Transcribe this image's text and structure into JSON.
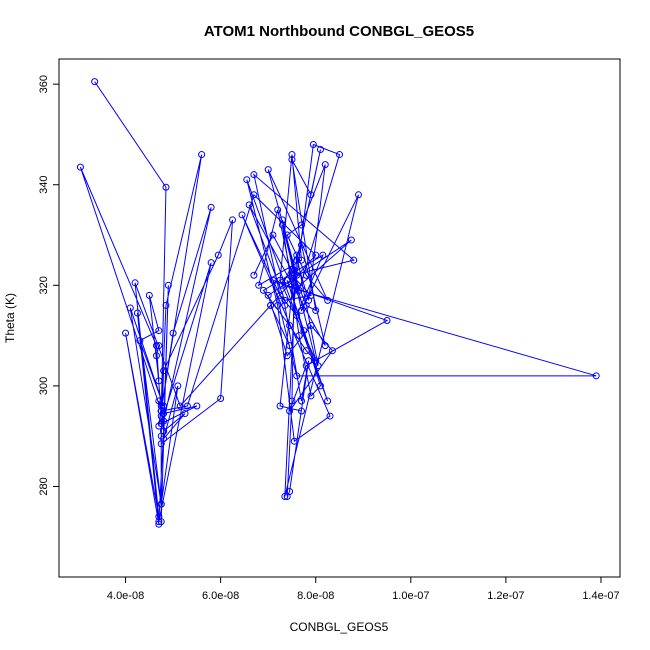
{
  "chart_data": {
    "type": "scatter",
    "title": "ATOM1 Northbound CONBGL_GEOS5",
    "xlabel": "CONBGL_GEOS5",
    "ylabel": "Theta (K)",
    "xlim": [
      2.6e-08,
      1.44e-07
    ],
    "ylim": [
      262,
      365
    ],
    "x_ticks": [
      4e-08,
      6e-08,
      8e-08,
      1e-07,
      1.2e-07,
      1.4e-07
    ],
    "x_tick_labels": [
      "4.0e-08",
      "6.0e-08",
      "8.0e-08",
      "1.0e-07",
      "1.2e-07",
      "1.4e-07"
    ],
    "y_ticks": [
      280,
      300,
      320,
      340,
      360
    ],
    "y_tick_labels": [
      "280",
      "300",
      "320",
      "340",
      "360"
    ],
    "line_color": "#0000ff",
    "marker": "open-circle",
    "grid": false,
    "legend": "none",
    "series": [
      {
        "x": [
          3.35e-08,
          4.85e-08,
          4.75e-08,
          4.85e-08,
          5.6e-08,
          4.75e-08,
          4.8e-08,
          5.8e-08,
          5e-08,
          4.7e-08,
          4.75e-08,
          4.7e-08,
          4.8e-08,
          5.5e-08,
          4.75e-08,
          5.8e-08,
          4.7e-08,
          4.8e-08,
          4.9e-08,
          4.75e-08,
          4.75e-08,
          4.8e-08,
          5.95e-08,
          6.25e-08,
          6e-08,
          4.75e-08,
          4.75e-08,
          5.1e-08,
          4.8e-08,
          5.25e-08,
          4.8e-08,
          4.75e-08,
          5.3e-08,
          6.7e-08,
          8e-08,
          7.05e-08,
          7.45e-08,
          7.05e-08,
          5.15e-08,
          4.2e-08,
          4.7e-08,
          4e-08,
          4.7e-08,
          4.25e-08,
          4.75e-08,
          4.1e-08,
          4.8e-08,
          4.3e-08,
          4.7e-08,
          4.5e-08,
          4.7e-08,
          4.65e-08,
          3.05e-08,
          4.75e-08,
          4.65e-08,
          4.7e-08
        ],
        "y": [
          360.5,
          339.5,
          294,
          316,
          346,
          295,
          293,
          335.5,
          310.5,
          292,
          296,
          297,
          294.5,
          296,
          292.5,
          324.5,
          273,
          291,
          320,
          273,
          290,
          303,
          326,
          333,
          297.5,
          288.5,
          276.5,
          300,
          289.5,
          294.5,
          291,
          295,
          296,
          338,
          326,
          316,
          308,
          316,
          296,
          320.5,
          274,
          310.5,
          272.5,
          314.5,
          276.5,
          315.5,
          296,
          309,
          311,
          318,
          301,
          308,
          343.5,
          295,
          306,
          308
        ]
      },
      {
        "x": [
          6.7e-08,
          7.1e-08,
          7.55e-08,
          7.8e-08,
          8e-08,
          7.5e-08,
          7.9e-08,
          8.1e-08,
          7.6e-08,
          7.85e-08,
          8.2e-08,
          7.7e-08,
          7.4e-08,
          7.8e-08,
          8.25e-08,
          7e-08,
          7.6e-08,
          7.95e-08,
          8.5e-08,
          7.65e-08,
          7.3e-08,
          7.7e-08,
          8.9e-08,
          7.35e-08,
          7.6e-08,
          8.05e-08,
          7.25e-08,
          7.5e-08,
          7.7e-08,
          6.8e-08,
          7.2e-08,
          7.55e-08,
          8.75e-08,
          7e-08,
          7.4e-08,
          7.9e-08,
          8.35e-08,
          7.45e-08,
          7.8e-08,
          9.5e-08,
          7.1e-08,
          7.6e-08,
          1.39e-07,
          7.3e-08,
          7.7e-08,
          8.2e-08,
          6.6e-08,
          7.35e-08,
          7.9e-08,
          7.5e-08,
          8.8e-08,
          6.7e-08,
          7.25e-08,
          7.6e-08,
          8.15e-08,
          6.9e-08,
          7.45e-08,
          7.8e-08,
          8e-08,
          7.3e-08,
          7.65e-08,
          7.9e-08,
          8.1e-08,
          7.4e-08,
          7.75e-08,
          8.25e-08,
          6.55e-08,
          7.2e-08,
          7.55e-08,
          8.3e-08,
          6.45e-08,
          7.35e-08,
          7.7e-08,
          7.85e-08,
          7.45e-08,
          7.4e-08,
          7.5e-08,
          7.55e-08,
          7.25e-08,
          7.7e-08
        ],
        "y": [
          322,
          330,
          322,
          316,
          315,
          345,
          338,
          347,
          325,
          317,
          344,
          332,
          330,
          322,
          317,
          343,
          322,
          348,
          346,
          319,
          333,
          315,
          338,
          278,
          326,
          304,
          321,
          346,
          325,
          320,
          335,
          319,
          329,
          318,
          306,
          312,
          307,
          295,
          304,
          313,
          321,
          302,
          302,
          320,
          328,
          308,
          336,
          317,
          318,
          322,
          325,
          342,
          318,
          314,
          326,
          319,
          312,
          307,
          305,
          332,
          310,
          298,
          300,
          321,
          311,
          297,
          341,
          316,
          289,
          294,
          334,
          316,
          297,
          305,
          279,
          278,
          297,
          323,
          296,
          295
        ]
      }
    ]
  }
}
